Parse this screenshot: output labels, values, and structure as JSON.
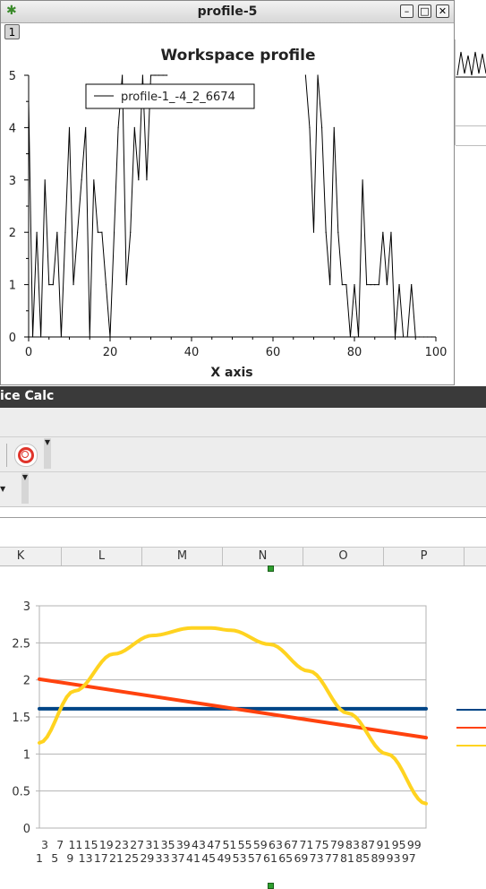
{
  "profile_window": {
    "title": "profile-5",
    "tab_label": "1",
    "min_symbol": "–",
    "max_symbol": "□",
    "close_symbol": "✕",
    "chart_data": {
      "type": "line",
      "title": "Workspace profile",
      "xlabel": "X axis",
      "ylabel": "",
      "xlim": [
        0,
        100
      ],
      "ylim": [
        0,
        5
      ],
      "x_ticks": [
        "0",
        "20",
        "40",
        "60",
        "80",
        "100"
      ],
      "y_ticks": [
        "0",
        "1",
        "2",
        "3",
        "4",
        "5"
      ],
      "legend": "top-left",
      "series": [
        {
          "name": "profile-1_-4_2_6674",
          "x": [
            0,
            1,
            2,
            3,
            4,
            5,
            6,
            7,
            8,
            9,
            10,
            11,
            12,
            13,
            14,
            15,
            16,
            17,
            18,
            19,
            20,
            21,
            22,
            23,
            24,
            25,
            26,
            27,
            28,
            29,
            30,
            31,
            32,
            33,
            34,
            68,
            69,
            70,
            71,
            72,
            73,
            74,
            75,
            76,
            77,
            78,
            79,
            80,
            81,
            82,
            83,
            84,
            85,
            86,
            87,
            88,
            89,
            90,
            91,
            92,
            93,
            94,
            95,
            96,
            97,
            98,
            99
          ],
          "y": [
            4.5,
            0,
            2,
            0,
            3,
            1,
            1,
            2,
            0,
            2,
            4,
            1,
            2,
            3,
            4,
            0,
            3,
            2,
            2,
            1,
            0,
            2,
            4,
            5,
            1,
            2,
            4,
            3,
            5,
            3,
            5,
            5,
            5,
            5,
            5,
            5,
            4,
            2,
            5,
            4,
            2,
            1,
            4,
            2,
            1,
            1,
            0,
            1,
            0,
            3,
            1,
            1,
            1,
            1,
            2,
            1,
            2,
            0,
            1,
            0,
            0,
            1,
            0,
            0,
            0,
            0,
            0
          ]
        }
      ]
    }
  },
  "calc_window": {
    "title_fragment": "ice Calc",
    "columns": [
      "K",
      "L",
      "M",
      "N",
      "O",
      "P"
    ],
    "help_icon": "lifebuoy-icon",
    "chart_data": {
      "type": "line",
      "title": "",
      "xlabel": "",
      "ylabel": "",
      "ylim": [
        0,
        3
      ],
      "y_ticks": [
        "0",
        "0.5",
        "1",
        "1.5",
        "2",
        "2.5",
        "3"
      ],
      "x_ticks_row1": [
        "3",
        "7",
        "11",
        "15",
        "19",
        "23",
        "27",
        "31",
        "35",
        "39",
        "43",
        "47",
        "51",
        "55",
        "59",
        "63",
        "67",
        "71",
        "75",
        "79",
        "83",
        "87",
        "91",
        "95",
        "99"
      ],
      "x_ticks_row2": [
        "1",
        "5",
        "9",
        "13",
        "17",
        "21",
        "25",
        "29",
        "33",
        "37",
        "41",
        "45",
        "49",
        "53",
        "57",
        "61",
        "65",
        "69",
        "73",
        "77",
        "81",
        "85",
        "89",
        "93",
        "97"
      ],
      "grid": true,
      "legend": "right",
      "series": [
        {
          "color": "#004586",
          "x": [
            1,
            100
          ],
          "y": [
            1.61,
            1.61
          ]
        },
        {
          "color": "#ff420e",
          "x": [
            1,
            100
          ],
          "y": [
            2.01,
            1.22
          ]
        },
        {
          "color": "#ffd320",
          "x": [
            1,
            10,
            20,
            30,
            40,
            45,
            50,
            60,
            70,
            80,
            90,
            100
          ],
          "y": [
            1.15,
            1.85,
            2.35,
            2.6,
            2.7,
            2.7,
            2.67,
            2.48,
            2.12,
            1.55,
            1.0,
            0.33
          ]
        }
      ]
    }
  }
}
